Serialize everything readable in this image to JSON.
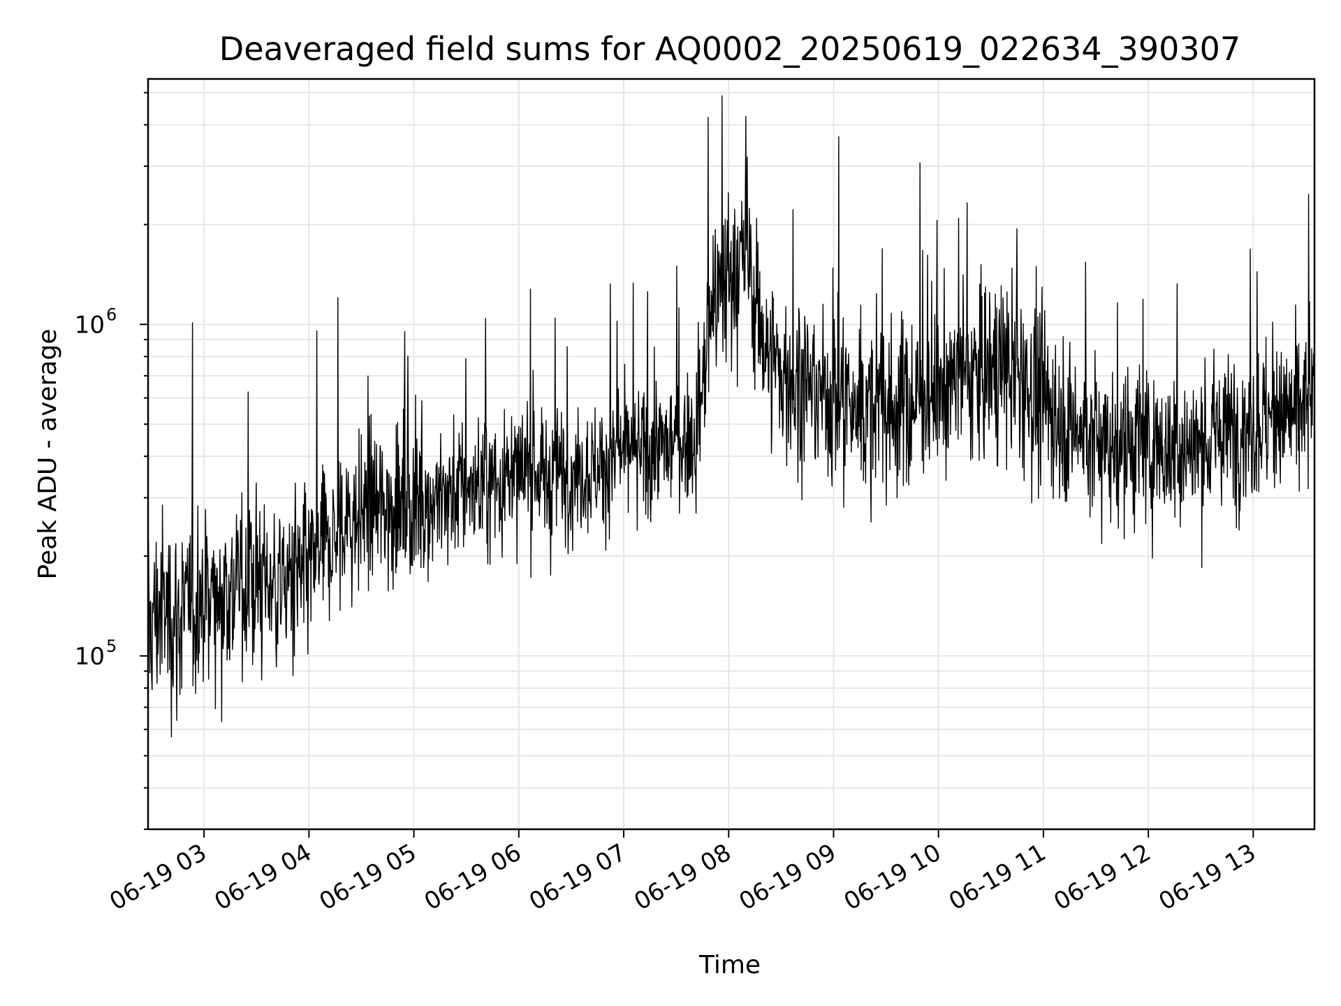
{
  "chart_data": {
    "type": "line",
    "title": "Deaveraged field sums for AQ0002_20250619_022634_390307",
    "xlabel": "Time",
    "ylabel": "Peak ADU - average",
    "x_scale": "time",
    "y_scale": "log",
    "xlim": [
      "2025-06-19 02:28",
      "2025-06-19 13:35"
    ],
    "ylim": [
      30000,
      5500000
    ],
    "grid": true,
    "legend": "none",
    "line_color": "#000000",
    "x_ticks": [
      {
        "value": "2025-06-19 03:00",
        "label": "06-19 03"
      },
      {
        "value": "2025-06-19 04:00",
        "label": "06-19 04"
      },
      {
        "value": "2025-06-19 05:00",
        "label": "06-19 05"
      },
      {
        "value": "2025-06-19 06:00",
        "label": "06-19 06"
      },
      {
        "value": "2025-06-19 07:00",
        "label": "06-19 07"
      },
      {
        "value": "2025-06-19 08:00",
        "label": "06-19 08"
      },
      {
        "value": "2025-06-19 09:00",
        "label": "06-19 09"
      },
      {
        "value": "2025-06-19 10:00",
        "label": "06-19 10"
      },
      {
        "value": "2025-06-19 11:00",
        "label": "06-19 11"
      },
      {
        "value": "2025-06-19 12:00",
        "label": "06-19 12"
      },
      {
        "value": "2025-06-19 13:00",
        "label": "06-19 13"
      }
    ],
    "y_ticks": [
      {
        "value": 100000,
        "base": "10",
        "exponent": "5"
      },
      {
        "value": 1000000,
        "base": "10",
        "exponent": "6"
      }
    ],
    "series": [
      {
        "x": [
          "2025-06-19 02:28",
          "2025-06-19 02:35",
          "2025-06-19 02:45",
          "2025-06-19 03:00",
          "2025-06-19 03:15",
          "2025-06-19 03:30",
          "2025-06-19 03:45",
          "2025-06-19 04:00",
          "2025-06-19 04:15",
          "2025-06-19 04:30",
          "2025-06-19 04:45",
          "2025-06-19 05:00",
          "2025-06-19 05:15",
          "2025-06-19 05:30",
          "2025-06-19 05:45",
          "2025-06-19 06:00",
          "2025-06-19 06:15",
          "2025-06-19 06:30",
          "2025-06-19 06:45",
          "2025-06-19 07:00",
          "2025-06-19 07:15",
          "2025-06-19 07:30",
          "2025-06-19 07:42",
          "2025-06-19 07:50",
          "2025-06-19 08:00",
          "2025-06-19 08:10",
          "2025-06-19 08:20",
          "2025-06-19 08:30",
          "2025-06-19 08:45",
          "2025-06-19 09:00",
          "2025-06-19 09:15",
          "2025-06-19 09:30",
          "2025-06-19 09:45",
          "2025-06-19 10:00",
          "2025-06-19 10:15",
          "2025-06-19 10:30",
          "2025-06-19 10:45",
          "2025-06-19 11:00",
          "2025-06-19 11:15",
          "2025-06-19 11:30",
          "2025-06-19 11:45",
          "2025-06-19 12:00",
          "2025-06-19 12:15",
          "2025-06-19 12:30",
          "2025-06-19 12:45",
          "2025-06-19 13:00",
          "2025-06-19 13:15",
          "2025-06-19 13:30",
          "2025-06-19 13:35"
        ],
        "y": [
          120000,
          140000,
          130000,
          150000,
          160000,
          170000,
          165000,
          175000,
          230000,
          270000,
          280000,
          290000,
          300000,
          320000,
          330000,
          340000,
          350000,
          360000,
          370000,
          400000,
          420000,
          440000,
          460000,
          1100000,
          1400000,
          1600000,
          900000,
          700000,
          650000,
          600000,
          550000,
          560000,
          580000,
          650000,
          700000,
          750000,
          700000,
          600000,
          500000,
          450000,
          430000,
          430000,
          420000,
          430000,
          480000,
          500000,
          520000,
          560000,
          600000
        ],
        "noise_spread": [
          0.45,
          0.45,
          0.45,
          0.42,
          0.42,
          0.42,
          0.42,
          0.4,
          0.38,
          0.38,
          0.36,
          0.36,
          0.35,
          0.34,
          0.33,
          0.32,
          0.32,
          0.31,
          0.3,
          0.3,
          0.3,
          0.3,
          0.3,
          0.45,
          0.42,
          0.42,
          0.4,
          0.4,
          0.4,
          0.4,
          0.4,
          0.4,
          0.4,
          0.4,
          0.42,
          0.42,
          0.42,
          0.4,
          0.4,
          0.4,
          0.38,
          0.38,
          0.38,
          0.36,
          0.36,
          0.36,
          0.36,
          0.36,
          0.36
        ]
      }
    ]
  }
}
